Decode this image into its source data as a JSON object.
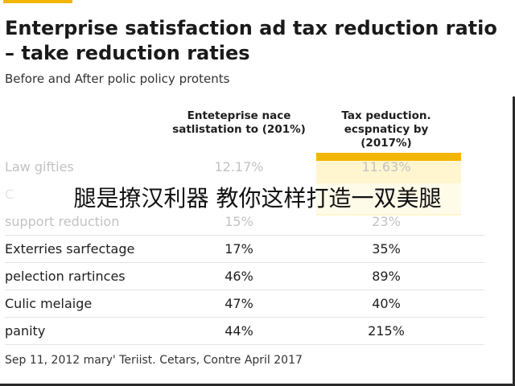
{
  "chart_data": {
    "type": "table",
    "title": "Enterprise satisfaction ad tax reduction ratio – take reduction raties",
    "subtitle": "Before and After polic policy protents",
    "columns": [
      "Enteteprise nace satlistation to (201%)",
      "Tax peduction. ecspnaticy by (2017%)"
    ],
    "rows": [
      {
        "label": "Law gifties",
        "values": [
          "12.17%",
          "11.63%"
        ]
      },
      {
        "label": "C",
        "values": [
          "",
          "8%"
        ]
      },
      {
        "label": "support reduction",
        "values": [
          "15%",
          "23%"
        ]
      },
      {
        "label": "Exterries sarfectage",
        "values": [
          "17%",
          "35%"
        ]
      },
      {
        "label": "pelection rartinces",
        "values": [
          "46%",
          "89%"
        ]
      },
      {
        "label": "Culic melaige",
        "values": [
          "47%",
          "40%"
        ]
      },
      {
        "label": "panity",
        "values": [
          "44%",
          "215%"
        ]
      }
    ],
    "highlight_column": 1,
    "source": "Sep 11, 2012 mary' Teriist. Cetars, Contre April 2017"
  },
  "overlay_text": "腿是撩汉利器 教你这样打造一双美腿",
  "colors": {
    "accent": "#f2b705",
    "highlight_fill": "#fff5cf",
    "faded_text": "#c2c2c2"
  }
}
